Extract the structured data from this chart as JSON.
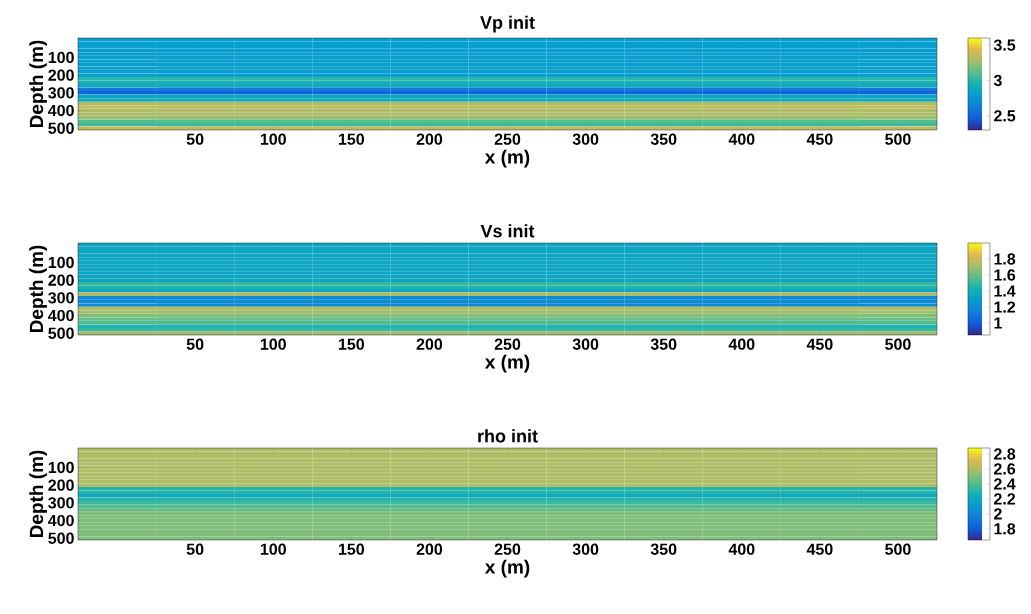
{
  "chart_data": [
    {
      "type": "heatmap",
      "title": "Vp init",
      "xlabel": "x (m)",
      "ylabel": "Depth (m)",
      "clim": [
        2.3,
        3.6
      ],
      "cticks": [
        2.5,
        3,
        3.5
      ],
      "categories": [
        null,
        "50",
        "100",
        "150",
        "200",
        "250",
        "300",
        "350",
        "400",
        "450",
        "500"
      ],
      "y_categories": [
        null,
        null,
        null,
        null,
        null,
        "100",
        null,
        null,
        null,
        null,
        "200",
        null,
        null,
        null,
        null,
        "300",
        null,
        null,
        null,
        null,
        "400",
        null,
        null,
        null,
        null,
        "500"
      ],
      "cells": [
        [
          2.8,
          2.8,
          2.8,
          2.8,
          2.8,
          2.8,
          2.8,
          2.8,
          2.8,
          2.8,
          2.8
        ],
        [
          2.8,
          2.8,
          2.8,
          2.8,
          2.8,
          2.8,
          2.8,
          2.8,
          2.8,
          2.8,
          2.8
        ],
        [
          2.8,
          2.8,
          2.8,
          2.8,
          2.8,
          2.8,
          2.8,
          2.8,
          2.8,
          2.8,
          2.8
        ],
        [
          2.8,
          2.8,
          2.8,
          2.8,
          2.8,
          2.8,
          2.8,
          2.8,
          2.8,
          2.8,
          2.8
        ],
        [
          2.8,
          2.8,
          2.8,
          2.8,
          2.8,
          2.8,
          2.8,
          2.8,
          2.8,
          2.8,
          2.8
        ],
        [
          2.8,
          2.8,
          2.8,
          2.8,
          2.8,
          2.8,
          2.8,
          2.8,
          2.8,
          2.8,
          2.8
        ],
        [
          2.8,
          2.8,
          2.8,
          2.8,
          2.8,
          2.8,
          2.8,
          2.8,
          2.8,
          2.8,
          2.8
        ],
        [
          2.8,
          2.8,
          2.8,
          2.8,
          2.8,
          2.8,
          2.8,
          2.8,
          2.8,
          2.8,
          2.8
        ],
        [
          2.8,
          2.8,
          2.8,
          2.8,
          2.8,
          2.8,
          2.8,
          2.8,
          2.8,
          2.8,
          2.8
        ],
        [
          2.8,
          2.8,
          2.8,
          2.8,
          2.8,
          2.8,
          2.8,
          2.8,
          2.8,
          2.8,
          2.8
        ],
        [
          2.8,
          2.8,
          2.8,
          2.8,
          2.8,
          2.8,
          2.8,
          2.8,
          2.8,
          2.8,
          2.8
        ],
        [
          3.0,
          3.0,
          3.0,
          3.0,
          3.0,
          3.0,
          3.0,
          3.0,
          3.0,
          3.0,
          3.0
        ],
        [
          2.95,
          2.95,
          2.95,
          2.95,
          2.95,
          2.95,
          2.95,
          2.95,
          2.95,
          2.95,
          2.95
        ],
        [
          2.9,
          2.9,
          2.9,
          2.9,
          2.9,
          2.9,
          2.9,
          2.9,
          2.9,
          2.9,
          2.9
        ],
        [
          2.6,
          2.6,
          2.6,
          2.6,
          2.6,
          2.6,
          2.6,
          2.6,
          2.6,
          2.6,
          2.6
        ],
        [
          2.5,
          2.5,
          2.5,
          2.5,
          2.5,
          2.5,
          2.5,
          2.5,
          2.5,
          2.5,
          2.5
        ],
        [
          2.85,
          2.85,
          2.85,
          2.85,
          2.85,
          2.85,
          2.85,
          2.85,
          2.85,
          2.85,
          2.85
        ],
        [
          2.9,
          2.9,
          2.9,
          2.9,
          2.9,
          2.9,
          2.9,
          2.9,
          2.9,
          2.9,
          2.9
        ],
        [
          3.3,
          3.3,
          3.3,
          3.3,
          3.3,
          3.3,
          3.3,
          3.3,
          3.3,
          3.3,
          3.3
        ],
        [
          3.35,
          3.35,
          3.35,
          3.35,
          3.35,
          3.35,
          3.35,
          3.35,
          3.35,
          3.35,
          3.35
        ],
        [
          3.3,
          3.3,
          3.3,
          3.3,
          3.3,
          3.3,
          3.3,
          3.3,
          3.3,
          3.3,
          3.3
        ],
        [
          3.3,
          3.3,
          3.3,
          3.3,
          3.3,
          3.3,
          3.3,
          3.3,
          3.3,
          3.3,
          3.3
        ],
        [
          3.25,
          3.25,
          3.25,
          3.25,
          3.25,
          3.25,
          3.25,
          3.25,
          3.25,
          3.25,
          3.25
        ],
        [
          3.1,
          3.1,
          3.1,
          3.1,
          3.1,
          3.1,
          3.1,
          3.1,
          3.1,
          3.1,
          3.1
        ],
        [
          3.05,
          3.05,
          3.05,
          3.05,
          3.05,
          3.05,
          3.05,
          3.05,
          3.05,
          3.05,
          3.05
        ],
        [
          3.35,
          3.35,
          3.35,
          3.35,
          3.35,
          3.35,
          3.35,
          3.35,
          3.35,
          3.35,
          3.35
        ]
      ]
    },
    {
      "type": "heatmap",
      "title": "Vs init",
      "xlabel": "x (m)",
      "ylabel": "Depth (m)",
      "clim": [
        0.85,
        2.0
      ],
      "cticks": [
        1,
        1.2,
        1.4,
        1.6,
        1.8
      ],
      "categories": [
        null,
        "50",
        "100",
        "150",
        "200",
        "250",
        "300",
        "350",
        "400",
        "450",
        "500"
      ],
      "y_categories": [
        null,
        null,
        null,
        null,
        null,
        "100",
        null,
        null,
        null,
        null,
        "200",
        null,
        null,
        null,
        null,
        "300",
        null,
        null,
        null,
        null,
        "400",
        null,
        null,
        null,
        null,
        "500"
      ],
      "cells": [
        [
          1.35,
          1.35,
          1.35,
          1.35,
          1.35,
          1.35,
          1.35,
          1.35,
          1.35,
          1.35,
          1.35
        ],
        [
          1.35,
          1.35,
          1.35,
          1.35,
          1.35,
          1.35,
          1.35,
          1.35,
          1.35,
          1.35,
          1.35
        ],
        [
          1.35,
          1.35,
          1.35,
          1.35,
          1.35,
          1.35,
          1.35,
          1.35,
          1.35,
          1.35,
          1.35
        ],
        [
          1.35,
          1.35,
          1.35,
          1.35,
          1.35,
          1.35,
          1.35,
          1.35,
          1.35,
          1.35,
          1.35
        ],
        [
          1.35,
          1.35,
          1.35,
          1.35,
          1.35,
          1.35,
          1.35,
          1.35,
          1.35,
          1.35,
          1.35
        ],
        [
          1.35,
          1.35,
          1.35,
          1.35,
          1.35,
          1.35,
          1.35,
          1.35,
          1.35,
          1.35,
          1.35
        ],
        [
          1.35,
          1.35,
          1.35,
          1.35,
          1.35,
          1.35,
          1.35,
          1.35,
          1.35,
          1.35,
          1.35
        ],
        [
          1.35,
          1.35,
          1.35,
          1.35,
          1.35,
          1.35,
          1.35,
          1.35,
          1.35,
          1.35,
          1.35
        ],
        [
          1.35,
          1.35,
          1.35,
          1.35,
          1.35,
          1.35,
          1.35,
          1.35,
          1.35,
          1.35,
          1.35
        ],
        [
          1.35,
          1.35,
          1.35,
          1.35,
          1.35,
          1.35,
          1.35,
          1.35,
          1.35,
          1.35,
          1.35
        ],
        [
          1.35,
          1.35,
          1.35,
          1.35,
          1.35,
          1.35,
          1.35,
          1.35,
          1.35,
          1.35,
          1.35
        ],
        [
          1.5,
          1.5,
          1.5,
          1.5,
          1.5,
          1.5,
          1.5,
          1.5,
          1.5,
          1.5,
          1.5
        ],
        [
          1.45,
          1.45,
          1.45,
          1.45,
          1.45,
          1.45,
          1.45,
          1.45,
          1.45,
          1.45,
          1.45
        ],
        [
          1.35,
          1.35,
          1.35,
          1.35,
          1.35,
          1.35,
          1.35,
          1.35,
          1.35,
          1.35,
          1.35
        ],
        [
          1.75,
          1.75,
          1.75,
          1.75,
          1.75,
          1.75,
          1.75,
          1.75,
          1.75,
          1.75,
          1.75
        ],
        [
          1.2,
          1.2,
          1.2,
          1.2,
          1.2,
          1.2,
          1.2,
          1.2,
          1.2,
          1.2,
          1.2
        ],
        [
          1.2,
          1.2,
          1.2,
          1.2,
          1.2,
          1.2,
          1.2,
          1.2,
          1.2,
          1.2,
          1.2
        ],
        [
          1.2,
          1.2,
          1.2,
          1.2,
          1.2,
          1.2,
          1.2,
          1.2,
          1.2,
          1.2,
          1.2
        ],
        [
          1.75,
          1.75,
          1.75,
          1.75,
          1.75,
          1.75,
          1.75,
          1.75,
          1.75,
          1.75,
          1.75
        ],
        [
          1.7,
          1.7,
          1.7,
          1.7,
          1.7,
          1.7,
          1.7,
          1.7,
          1.7,
          1.7,
          1.7
        ],
        [
          1.65,
          1.65,
          1.65,
          1.65,
          1.65,
          1.65,
          1.65,
          1.65,
          1.65,
          1.65,
          1.65
        ],
        [
          1.6,
          1.6,
          1.6,
          1.6,
          1.6,
          1.6,
          1.6,
          1.6,
          1.6,
          1.6,
          1.6
        ],
        [
          1.55,
          1.55,
          1.55,
          1.55,
          1.55,
          1.55,
          1.55,
          1.55,
          1.55,
          1.55,
          1.55
        ],
        [
          1.45,
          1.45,
          1.45,
          1.45,
          1.45,
          1.45,
          1.45,
          1.45,
          1.45,
          1.45,
          1.45
        ],
        [
          1.5,
          1.5,
          1.5,
          1.5,
          1.5,
          1.5,
          1.5,
          1.5,
          1.5,
          1.5,
          1.5
        ],
        [
          1.7,
          1.7,
          1.7,
          1.7,
          1.7,
          1.7,
          1.7,
          1.7,
          1.7,
          1.7,
          1.7
        ]
      ]
    },
    {
      "type": "heatmap",
      "title": "rho init",
      "xlabel": "x (m)",
      "ylabel": "Depth (m)",
      "clim": [
        1.65,
        2.88
      ],
      "cticks": [
        1.8,
        2,
        2.2,
        2.4,
        2.6,
        2.8
      ],
      "categories": [
        null,
        "50",
        "100",
        "150",
        "200",
        "250",
        "300",
        "350",
        "400",
        "450",
        "500"
      ],
      "y_categories": [
        null,
        null,
        null,
        null,
        null,
        "100",
        null,
        null,
        null,
        null,
        "200",
        null,
        null,
        null,
        null,
        "300",
        null,
        null,
        null,
        null,
        "400",
        null,
        null,
        null,
        null,
        "500"
      ],
      "cells": [
        [
          2.6,
          2.6,
          2.6,
          2.6,
          2.6,
          2.6,
          2.6,
          2.6,
          2.6,
          2.6,
          2.6
        ],
        [
          2.6,
          2.6,
          2.6,
          2.6,
          2.6,
          2.6,
          2.6,
          2.6,
          2.6,
          2.6,
          2.6
        ],
        [
          2.6,
          2.6,
          2.6,
          2.6,
          2.6,
          2.6,
          2.6,
          2.6,
          2.6,
          2.6,
          2.6
        ],
        [
          2.6,
          2.6,
          2.6,
          2.6,
          2.6,
          2.6,
          2.6,
          2.6,
          2.6,
          2.6,
          2.6
        ],
        [
          2.6,
          2.6,
          2.6,
          2.6,
          2.6,
          2.6,
          2.6,
          2.6,
          2.6,
          2.6,
          2.6
        ],
        [
          2.6,
          2.6,
          2.6,
          2.6,
          2.6,
          2.6,
          2.6,
          2.6,
          2.6,
          2.6,
          2.6
        ],
        [
          2.6,
          2.6,
          2.6,
          2.6,
          2.6,
          2.6,
          2.6,
          2.6,
          2.6,
          2.6,
          2.6
        ],
        [
          2.6,
          2.6,
          2.6,
          2.6,
          2.6,
          2.6,
          2.6,
          2.6,
          2.6,
          2.6,
          2.6
        ],
        [
          2.6,
          2.6,
          2.6,
          2.6,
          2.6,
          2.6,
          2.6,
          2.6,
          2.6,
          2.6,
          2.6
        ],
        [
          2.6,
          2.6,
          2.6,
          2.6,
          2.6,
          2.6,
          2.6,
          2.6,
          2.6,
          2.6,
          2.6
        ],
        [
          2.6,
          2.6,
          2.6,
          2.6,
          2.6,
          2.6,
          2.6,
          2.6,
          2.6,
          2.6,
          2.6
        ],
        [
          2.3,
          2.3,
          2.3,
          2.3,
          2.3,
          2.3,
          2.3,
          2.3,
          2.3,
          2.3,
          2.3
        ],
        [
          2.3,
          2.3,
          2.3,
          2.3,
          2.3,
          2.3,
          2.3,
          2.3,
          2.3,
          2.3,
          2.3
        ],
        [
          2.2,
          2.2,
          2.2,
          2.2,
          2.2,
          2.2,
          2.2,
          2.2,
          2.2,
          2.2,
          2.2
        ],
        [
          2.3,
          2.3,
          2.3,
          2.3,
          2.3,
          2.3,
          2.3,
          2.3,
          2.3,
          2.3,
          2.3
        ],
        [
          2.35,
          2.35,
          2.35,
          2.35,
          2.35,
          2.35,
          2.35,
          2.35,
          2.35,
          2.35,
          2.35
        ],
        [
          2.4,
          2.4,
          2.4,
          2.4,
          2.4,
          2.4,
          2.4,
          2.4,
          2.4,
          2.4,
          2.4
        ],
        [
          2.45,
          2.45,
          2.45,
          2.45,
          2.45,
          2.45,
          2.45,
          2.45,
          2.45,
          2.45,
          2.45
        ],
        [
          2.5,
          2.5,
          2.5,
          2.5,
          2.5,
          2.5,
          2.5,
          2.5,
          2.5,
          2.5,
          2.5
        ],
        [
          2.5,
          2.5,
          2.5,
          2.5,
          2.5,
          2.5,
          2.5,
          2.5,
          2.5,
          2.5,
          2.5
        ],
        [
          2.5,
          2.5,
          2.5,
          2.5,
          2.5,
          2.5,
          2.5,
          2.5,
          2.5,
          2.5,
          2.5
        ],
        [
          2.5,
          2.5,
          2.5,
          2.5,
          2.5,
          2.5,
          2.5,
          2.5,
          2.5,
          2.5,
          2.5
        ],
        [
          2.5,
          2.5,
          2.5,
          2.5,
          2.5,
          2.5,
          2.5,
          2.5,
          2.5,
          2.5,
          2.5
        ],
        [
          2.5,
          2.5,
          2.5,
          2.5,
          2.5,
          2.5,
          2.5,
          2.5,
          2.5,
          2.5,
          2.5
        ],
        [
          2.5,
          2.5,
          2.5,
          2.5,
          2.5,
          2.5,
          2.5,
          2.5,
          2.5,
          2.5,
          2.5
        ],
        [
          2.5,
          2.5,
          2.5,
          2.5,
          2.5,
          2.5,
          2.5,
          2.5,
          2.5,
          2.5,
          2.5
        ]
      ]
    }
  ]
}
